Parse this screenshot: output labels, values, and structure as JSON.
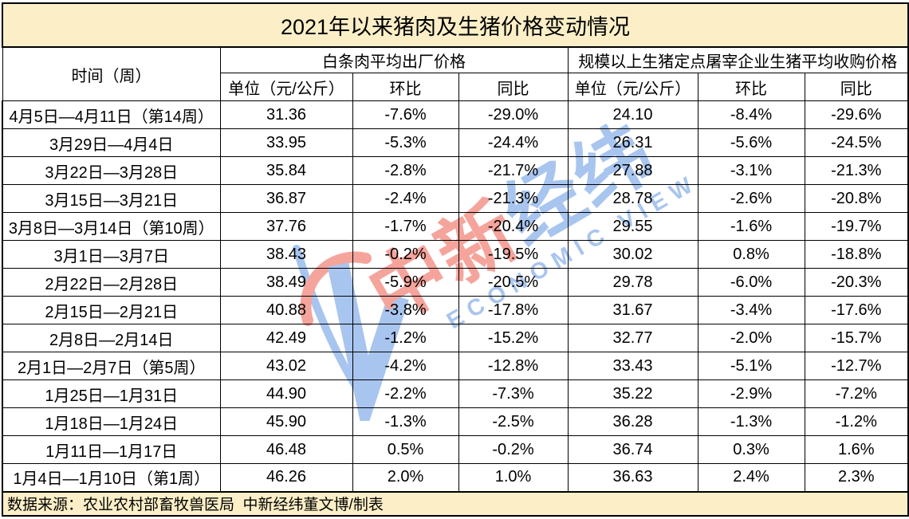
{
  "title": "2021年以来猪肉及生猪价格变动情况",
  "header": {
    "time_col": "时间（周）",
    "groups": [
      {
        "label": "白条肉平均出厂价格",
        "subcols": [
          "单位（元/公斤）",
          "环比",
          "同比"
        ]
      },
      {
        "label": "规模以上生猪定点屠宰企业生猪平均收购价格",
        "subcols": [
          "单位（元/公斤）",
          "环比",
          "同比"
        ]
      }
    ]
  },
  "rows": [
    {
      "period": "4月5日—4月11日（第14周）",
      "cells": [
        {
          "v": "31.36"
        },
        {
          "v": "-7.6%"
        },
        {
          "v": "-29.0%"
        },
        {
          "v": "24.10"
        },
        {
          "v": "-8.4%"
        },
        {
          "v": "-29.6%"
        }
      ]
    },
    {
      "period": "3月29日—4月4日",
      "cells": [
        {
          "v": "33.95"
        },
        {
          "v": "-5.3%"
        },
        {
          "v": "-24.4%"
        },
        {
          "v": "26.31"
        },
        {
          "v": "-5.6%"
        },
        {
          "v": "-24.5%"
        }
      ]
    },
    {
      "period": "3月22日—3月28日",
      "cells": [
        {
          "v": "35.84"
        },
        {
          "v": "-2.8%"
        },
        {
          "v": "-21.7%"
        },
        {
          "v": "27.88"
        },
        {
          "v": "-3.1%"
        },
        {
          "v": "-21.3%"
        }
      ]
    },
    {
      "period": "3月15日—3月21日",
      "cells": [
        {
          "v": "36.87"
        },
        {
          "v": "-2.4%"
        },
        {
          "v": "-21.3%"
        },
        {
          "v": "28.78"
        },
        {
          "v": "-2.6%"
        },
        {
          "v": "-20.8%"
        }
      ]
    },
    {
      "period": "3月8日—3月14日（第10周）",
      "cells": [
        {
          "v": "37.76"
        },
        {
          "v": "-1.7%"
        },
        {
          "v": "-20.4%"
        },
        {
          "v": "29.55"
        },
        {
          "v": "-1.6%"
        },
        {
          "v": "-19.7%"
        }
      ]
    },
    {
      "period": "3月1日—3月7日",
      "cells": [
        {
          "v": "38.43"
        },
        {
          "v": "-0.2%"
        },
        {
          "v": "-19.5%"
        },
        {
          "v": "30.02"
        },
        {
          "v": "0.8%",
          "c": "red"
        },
        {
          "v": "-18.8%"
        }
      ]
    },
    {
      "period": "2月22日—2月28日",
      "cells": [
        {
          "v": "38.49"
        },
        {
          "v": "-5.9%"
        },
        {
          "v": "-20.5%"
        },
        {
          "v": "29.78"
        },
        {
          "v": "-6.0%"
        },
        {
          "v": "-20.3%"
        }
      ]
    },
    {
      "period": "2月15日—2月21日",
      "cells": [
        {
          "v": "40.88"
        },
        {
          "v": "-3.8%"
        },
        {
          "v": "-17.8%"
        },
        {
          "v": "31.67"
        },
        {
          "v": "-3.4%"
        },
        {
          "v": "-17.6%"
        }
      ]
    },
    {
      "period": "2月8日—2月14日",
      "cells": [
        {
          "v": "42.49"
        },
        {
          "v": "-1.2%"
        },
        {
          "v": "-15.2%"
        },
        {
          "v": "32.77"
        },
        {
          "v": "-2.0%"
        },
        {
          "v": "-15.7%"
        }
      ]
    },
    {
      "period": "2月1日—2月7日（第5周）",
      "cells": [
        {
          "v": "43.02"
        },
        {
          "v": "-4.2%"
        },
        {
          "v": "-12.8%"
        },
        {
          "v": "33.43"
        },
        {
          "v": "-5.1%"
        },
        {
          "v": "-12.7%"
        }
      ]
    },
    {
      "period": "1月25日—1月31日",
      "cells": [
        {
          "v": "44.90"
        },
        {
          "v": "-2.2%"
        },
        {
          "v": "-7.3%"
        },
        {
          "v": "35.22"
        },
        {
          "v": "-2.9%"
        },
        {
          "v": "-7.2%"
        }
      ]
    },
    {
      "period": "1月18日—1月24日",
      "cells": [
        {
          "v": "45.90"
        },
        {
          "v": "-1.3%"
        },
        {
          "v": "-2.5%",
          "c": "gray"
        },
        {
          "v": "36.28"
        },
        {
          "v": "-1.3%"
        },
        {
          "v": "-1.2%",
          "c": "gray"
        }
      ]
    },
    {
      "period": "1月11日—1月17日",
      "cells": [
        {
          "v": "46.48"
        },
        {
          "v": "0.5%",
          "c": "red"
        },
        {
          "v": "-0.2%"
        },
        {
          "v": "36.74"
        },
        {
          "v": "0.3%",
          "c": "red"
        },
        {
          "v": "1.6%"
        }
      ]
    },
    {
      "period": "1月4日—1月10日（第1周）",
      "cells": [
        {
          "v": "46.26"
        },
        {
          "v": "2.0%",
          "c": "red"
        },
        {
          "v": "1.0%"
        },
        {
          "v": "36.63"
        },
        {
          "v": "2.4%",
          "c": "red"
        },
        {
          "v": "2.3%"
        }
      ]
    }
  ],
  "footer": {
    "source": "数据来源：农业农村部畜牧兽医局  中新经纬董文博/制表"
  },
  "watermark": {
    "cn_pink": "中新",
    "cn_blue": "经纬",
    "en": "ECONOMIC VIEW"
  },
  "colors": {
    "cream": "#FCEFC7",
    "red": "#E8130C",
    "gray": "#595959",
    "wm_pink": "#F5A49C",
    "wm_blue": "#A8C5EF",
    "border": "#000000"
  }
}
